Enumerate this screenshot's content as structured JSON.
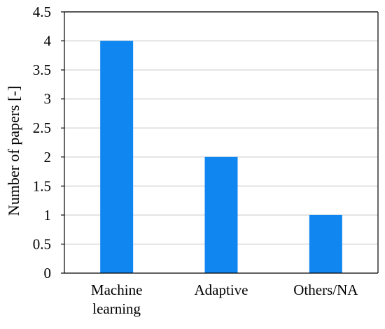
{
  "chart_data": {
    "type": "bar",
    "title": "",
    "xlabel": "",
    "ylabel": "Number of papers [-]",
    "categories": [
      [
        "Machine",
        "learning"
      ],
      [
        "Adaptive"
      ],
      [
        "Others/NA"
      ]
    ],
    "values": [
      4,
      2,
      1
    ],
    "ylim": [
      0,
      4.5
    ],
    "yticks": [
      0,
      0.5,
      1,
      1.5,
      2,
      2.5,
      3,
      3.5,
      4,
      4.5
    ],
    "ytick_labels": [
      "0",
      "0.5",
      "1",
      "1.5",
      "2",
      "2.5",
      "3",
      "3.5",
      "4",
      "4.5"
    ],
    "grid": true,
    "legend": "none",
    "colors": {
      "bar": "#0f86f0",
      "grid": "#d9d9d9",
      "axis": "#000000"
    }
  }
}
